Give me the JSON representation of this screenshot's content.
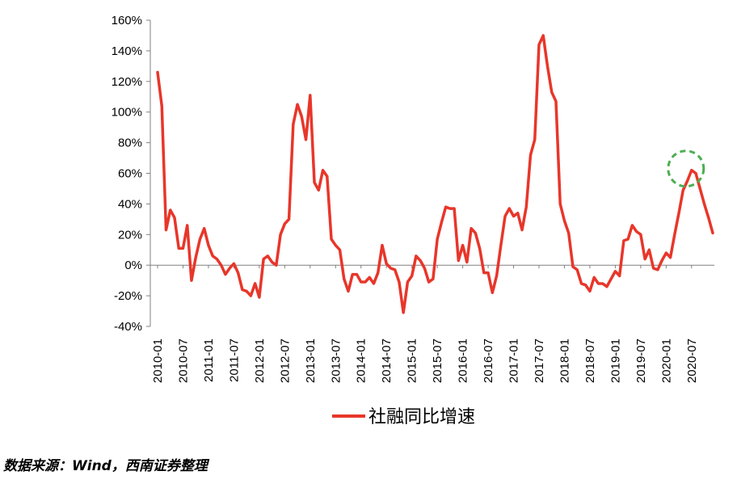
{
  "chart_data": {
    "type": "line",
    "title": "",
    "xlabel": "",
    "ylabel": "",
    "ylim": [
      -40,
      160
    ],
    "y_ticks": [
      "160%",
      "140%",
      "120%",
      "100%",
      "80%",
      "60%",
      "40%",
      "20%",
      "0%",
      "-20%",
      "-40%"
    ],
    "x_tick_labels": [
      "2010-01",
      "2010-07",
      "2011-01",
      "2011-07",
      "2012-01",
      "2012-07",
      "2013-01",
      "2013-07",
      "2014-01",
      "2014-07",
      "2015-01",
      "2015-07",
      "2016-01",
      "2016-07",
      "2017-01",
      "2017-07",
      "2018-01",
      "2018-07",
      "2019-01",
      "2019-07",
      "2020-01",
      "2020-07"
    ],
    "x_start": "2010-01",
    "legend_position": "bottom-center",
    "grid": false,
    "colors": {
      "series": "#e8362a",
      "highlight": "#4caf50"
    },
    "highlight_circle_at": "2020-07",
    "series": [
      {
        "name": "社融同比增速",
        "values": [
          126,
          104,
          23,
          36,
          31,
          11,
          11,
          26,
          -10,
          5,
          17,
          24,
          13,
          6,
          4,
          0,
          -6,
          -2,
          1,
          -5,
          -16,
          -17,
          -20,
          -12,
          -21,
          4,
          6,
          2,
          0,
          20,
          27,
          30,
          92,
          105,
          97,
          82,
          111,
          54,
          49,
          62,
          58,
          17,
          13,
          10,
          -9,
          -17,
          -6,
          -6,
          -11,
          -11,
          -8,
          -12,
          -5,
          13,
          1,
          -2,
          -3,
          -11,
          -31,
          -11,
          -7,
          6,
          3,
          -2,
          -11,
          -9,
          17,
          28,
          38,
          37,
          37,
          3,
          13,
          2,
          24,
          21,
          11,
          -5,
          -5,
          -18,
          -7,
          13,
          32,
          37,
          32,
          34,
          23,
          38,
          72,
          82,
          144,
          150,
          130,
          113,
          107,
          40,
          29,
          21,
          -1,
          -3,
          -12,
          -13,
          -17,
          -8,
          -12,
          -12,
          -14,
          -9,
          -4,
          -7,
          16,
          17,
          26,
          22,
          20,
          4,
          10,
          -2,
          -3,
          3,
          8,
          5,
          20,
          34,
          49,
          55,
          62,
          60,
          50,
          40,
          31,
          21
        ]
      }
    ]
  },
  "source_note": "数据来源：Wind，西南证券整理"
}
